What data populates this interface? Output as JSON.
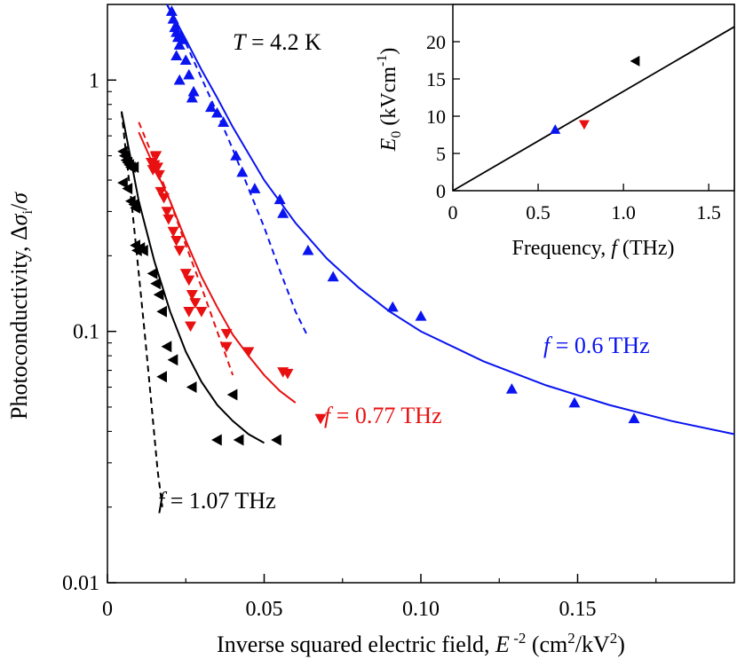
{
  "chart_data": [
    {
      "type": "scatter",
      "xlabel": "Inverse squared electric field, E⁻² (cm²/kV²)",
      "ylabel": "Photoconductivity, Δσᵢ/σ",
      "xlim": [
        0,
        0.2
      ],
      "ylim": [
        0.01,
        2.0
      ],
      "yscale": "log",
      "x_ticks": [
        0,
        0.05,
        0.1,
        0.15
      ],
      "x_tick_labels": [
        "0",
        "0.05",
        "0.10",
        "0.15"
      ],
      "y_ticks": [
        0.01,
        0.1,
        1
      ],
      "y_tick_labels": [
        "0.01",
        "0.1",
        "1"
      ],
      "annotation": "T = 4.2 K",
      "series": [
        {
          "name": "f = 0.6 THz",
          "color": "#0a14f0",
          "marker": "triangle-up",
          "points": [
            [
              0.0205,
              1.88
            ],
            [
              0.021,
              1.75
            ],
            [
              0.0215,
              1.62
            ],
            [
              0.022,
              1.55
            ],
            [
              0.0225,
              1.48
            ],
            [
              0.023,
              1.38
            ],
            [
              0.0235,
              1.5
            ],
            [
              0.024,
              1.45
            ],
            [
              0.022,
              1.25
            ],
            [
              0.025,
              1.2
            ],
            [
              0.026,
              1.05
            ],
            [
              0.023,
              1.0
            ],
            [
              0.0275,
              0.9
            ],
            [
              0.027,
              0.85
            ],
            [
              0.033,
              0.78
            ],
            [
              0.035,
              0.74
            ],
            [
              0.037,
              0.68
            ],
            [
              0.041,
              0.5
            ],
            [
              0.043,
              0.43
            ],
            [
              0.047,
              0.37
            ],
            [
              0.055,
              0.335
            ],
            [
              0.056,
              0.295
            ],
            [
              0.064,
              0.21
            ],
            [
              0.072,
              0.165
            ],
            [
              0.091,
              0.125
            ],
            [
              0.1,
              0.115
            ],
            [
              0.129,
              0.059
            ],
            [
              0.149,
              0.052
            ],
            [
              0.168,
              0.045
            ]
          ],
          "fit_solid": [
            [
              0.019,
              2.0
            ],
            [
              0.025,
              1.45
            ],
            [
              0.03,
              1.1
            ],
            [
              0.035,
              0.85
            ],
            [
              0.04,
              0.65
            ],
            [
              0.05,
              0.4
            ],
            [
              0.06,
              0.27
            ],
            [
              0.07,
              0.195
            ],
            [
              0.08,
              0.15
            ],
            [
              0.09,
              0.12
            ],
            [
              0.1,
              0.1
            ],
            [
              0.12,
              0.076
            ],
            [
              0.14,
              0.061
            ],
            [
              0.16,
              0.051
            ],
            [
              0.18,
              0.044
            ],
            [
              0.2,
              0.039
            ]
          ],
          "fit_dashed": [
            [
              0.019,
              2.0
            ],
            [
              0.025,
              1.4
            ],
            [
              0.03,
              1.02
            ],
            [
              0.035,
              0.74
            ],
            [
              0.04,
              0.53
            ],
            [
              0.045,
              0.37
            ],
            [
              0.05,
              0.26
            ],
            [
              0.055,
              0.175
            ],
            [
              0.06,
              0.12
            ],
            [
              0.064,
              0.095
            ]
          ]
        },
        {
          "name": "f = 0.77 THz",
          "color": "#e81010",
          "marker": "triangle-down",
          "points": [
            [
              0.014,
              0.47
            ],
            [
              0.0145,
              0.44
            ],
            [
              0.015,
              0.46
            ],
            [
              0.0155,
              0.5
            ],
            [
              0.016,
              0.45
            ],
            [
              0.0165,
              0.42
            ],
            [
              0.017,
              0.36
            ],
            [
              0.018,
              0.34
            ],
            [
              0.019,
              0.3
            ],
            [
              0.0195,
              0.28
            ],
            [
              0.021,
              0.25
            ],
            [
              0.022,
              0.23
            ],
            [
              0.023,
              0.21
            ],
            [
              0.025,
              0.17
            ],
            [
              0.026,
              0.16
            ],
            [
              0.027,
              0.14
            ],
            [
              0.028,
              0.13
            ],
            [
              0.03,
              0.12
            ],
            [
              0.026,
              0.12
            ],
            [
              0.0265,
              0.105
            ],
            [
              0.038,
              0.098
            ],
            [
              0.038,
              0.087
            ],
            [
              0.045,
              0.083
            ],
            [
              0.056,
              0.069
            ],
            [
              0.0575,
              0.068
            ],
            [
              0.068,
              0.045
            ]
          ],
          "fit_solid": [
            [
              0.01,
              0.62
            ],
            [
              0.015,
              0.45
            ],
            [
              0.02,
              0.33
            ],
            [
              0.025,
              0.23
            ],
            [
              0.03,
              0.165
            ],
            [
              0.035,
              0.125
            ],
            [
              0.04,
              0.097
            ],
            [
              0.045,
              0.08
            ],
            [
              0.05,
              0.067
            ],
            [
              0.055,
              0.058
            ],
            [
              0.06,
              0.052
            ]
          ],
          "fit_dashed": [
            [
              0.01,
              0.68
            ],
            [
              0.015,
              0.48
            ],
            [
              0.02,
              0.33
            ],
            [
              0.025,
              0.22
            ],
            [
              0.03,
              0.15
            ],
            [
              0.035,
              0.1
            ],
            [
              0.04,
              0.067
            ]
          ]
        },
        {
          "name": "f = 1.07 THz",
          "color": "#000000",
          "marker": "triangle-left",
          "points": [
            [
              0.005,
              0.52
            ],
            [
              0.0055,
              0.5
            ],
            [
              0.006,
              0.48
            ],
            [
              0.0065,
              0.47
            ],
            [
              0.007,
              0.46
            ],
            [
              0.0075,
              0.45
            ],
            [
              0.0085,
              0.45
            ],
            [
              0.005,
              0.39
            ],
            [
              0.0065,
              0.37
            ],
            [
              0.0075,
              0.33
            ],
            [
              0.0085,
              0.32
            ],
            [
              0.009,
              0.31
            ],
            [
              0.009,
              0.22
            ],
            [
              0.0105,
              0.215
            ],
            [
              0.0095,
              0.21
            ],
            [
              0.0115,
              0.21
            ],
            [
              0.0145,
              0.17
            ],
            [
              0.0155,
              0.155
            ],
            [
              0.0165,
              0.14
            ],
            [
              0.0175,
              0.12
            ],
            [
              0.019,
              0.087
            ],
            [
              0.021,
              0.077
            ],
            [
              0.0175,
              0.066
            ],
            [
              0.027,
              0.06
            ],
            [
              0.04,
              0.056
            ],
            [
              0.035,
              0.037
            ],
            [
              0.042,
              0.037
            ],
            [
              0.054,
              0.037
            ]
          ],
          "fit_solid": [
            [
              0.0045,
              0.75
            ],
            [
              0.0075,
              0.48
            ],
            [
              0.01,
              0.33
            ],
            [
              0.015,
              0.19
            ],
            [
              0.02,
              0.12
            ],
            [
              0.025,
              0.083
            ],
            [
              0.03,
              0.063
            ],
            [
              0.035,
              0.051
            ],
            [
              0.04,
              0.044
            ],
            [
              0.045,
              0.039
            ],
            [
              0.05,
              0.036
            ]
          ],
          "fit_dashed": [
            [
              0.0045,
              0.75
            ],
            [
              0.006,
              0.5
            ],
            [
              0.008,
              0.3
            ],
            [
              0.01,
              0.17
            ],
            [
              0.012,
              0.095
            ],
            [
              0.014,
              0.052
            ],
            [
              0.016,
              0.028
            ],
            [
              0.0175,
              0.02
            ]
          ]
        }
      ],
      "series_labels": [
        {
          "text": "f = 0.6 THz",
          "color": "#0a14f0"
        },
        {
          "text": "f = 0.77 THz",
          "color": "#e81010"
        },
        {
          "text": "f = 1.07 THz",
          "color": "#000000"
        }
      ]
    },
    {
      "type": "scatter",
      "inset": true,
      "xlabel": "Frequency, f (THz)",
      "ylabel": "E₀ (kVcm⁻¹)",
      "xlim": [
        0,
        1.65
      ],
      "ylim": [
        0,
        25
      ],
      "x_ticks": [
        0,
        0.5,
        1.0,
        1.5
      ],
      "x_tick_labels": [
        "0",
        "0.5",
        "1.0",
        "1.5"
      ],
      "y_ticks": [
        0,
        5,
        10,
        15,
        20
      ],
      "y_tick_labels": [
        "0",
        "5",
        "10",
        "15",
        "20"
      ],
      "points": [
        {
          "x": 0.6,
          "y": 8.2,
          "color": "#0a14f0",
          "marker": "triangle-up"
        },
        {
          "x": 0.77,
          "y": 8.9,
          "color": "#e81010",
          "marker": "triangle-down"
        },
        {
          "x": 1.07,
          "y": 17.4,
          "color": "#000000",
          "marker": "triangle-left"
        }
      ],
      "fit_line": [
        [
          0,
          0
        ],
        [
          1.65,
          22
        ]
      ]
    }
  ]
}
